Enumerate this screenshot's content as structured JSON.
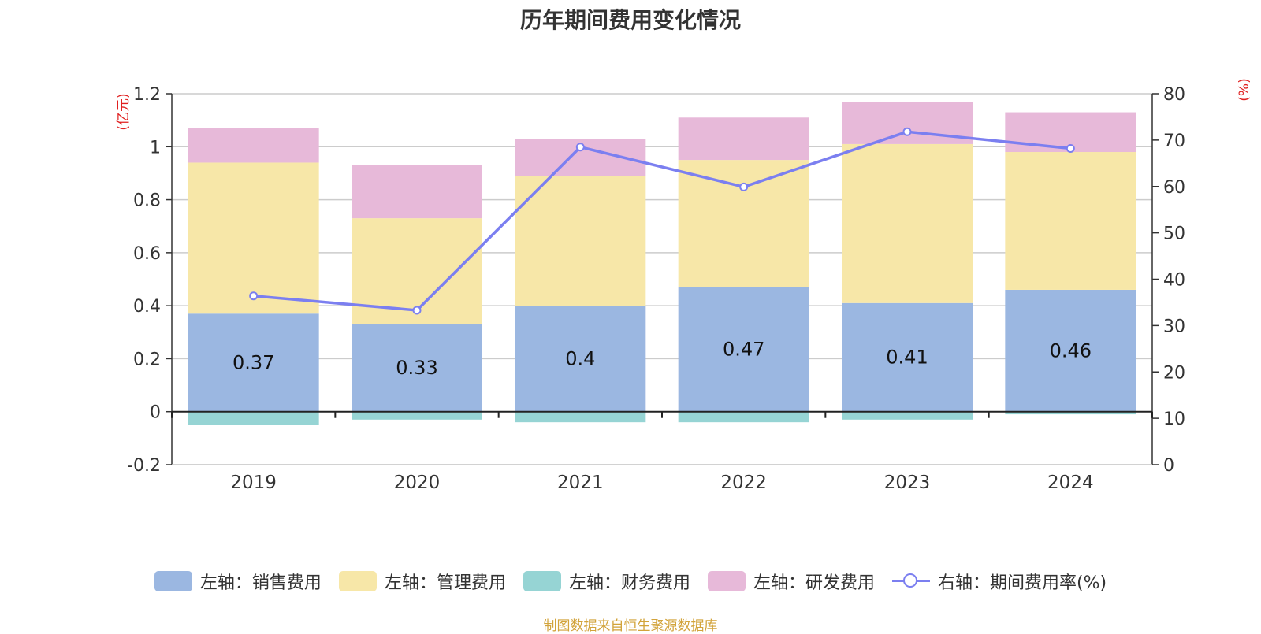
{
  "chart_data": {
    "type": "bar",
    "title": "历年期间费用变化情况",
    "left_unit": "(亿元)",
    "right_unit": "(%)",
    "categories": [
      "2019",
      "2020",
      "2021",
      "2022",
      "2023",
      "2024"
    ],
    "left_axis": {
      "min": -0.2,
      "max": 1.2,
      "ticks": [
        -0.2,
        0,
        0.2,
        0.4,
        0.6,
        0.8,
        1,
        1.2
      ]
    },
    "right_axis": {
      "min": 0,
      "max": 80,
      "ticks": [
        0,
        10,
        20,
        30,
        40,
        50,
        60,
        70,
        80
      ]
    },
    "series": [
      {
        "name": "左轴：销售费用",
        "axis": "left",
        "type": "bar",
        "color": "#9bb7e1",
        "values": [
          0.37,
          0.33,
          0.4,
          0.47,
          0.41,
          0.46
        ],
        "labels": [
          "0.37",
          "0.33",
          "0.4",
          "0.47",
          "0.41",
          "0.46"
        ]
      },
      {
        "name": "左轴：管理费用",
        "axis": "left",
        "type": "bar",
        "color": "#f7e7a8",
        "values": [
          0.57,
          0.4,
          0.49,
          0.48,
          0.6,
          0.52
        ]
      },
      {
        "name": "左轴：财务费用",
        "axis": "left",
        "type": "bar",
        "color": "#96d4d4",
        "values": [
          -0.05,
          -0.03,
          -0.04,
          -0.04,
          -0.03,
          -0.01
        ]
      },
      {
        "name": "左轴：研发费用",
        "axis": "left",
        "type": "bar",
        "color": "#e7b9d9",
        "values": [
          0.13,
          0.2,
          0.14,
          0.16,
          0.16,
          0.15
        ]
      },
      {
        "name": "右轴：期间费用率(%)",
        "axis": "right",
        "type": "line",
        "color": "#7b7ff0",
        "values": [
          36.4,
          33.3,
          68.5,
          59.9,
          71.8,
          68.2
        ]
      }
    ],
    "legend_position": "bottom",
    "grid": true
  },
  "source_note": "制图数据来自恒生聚源数据库"
}
